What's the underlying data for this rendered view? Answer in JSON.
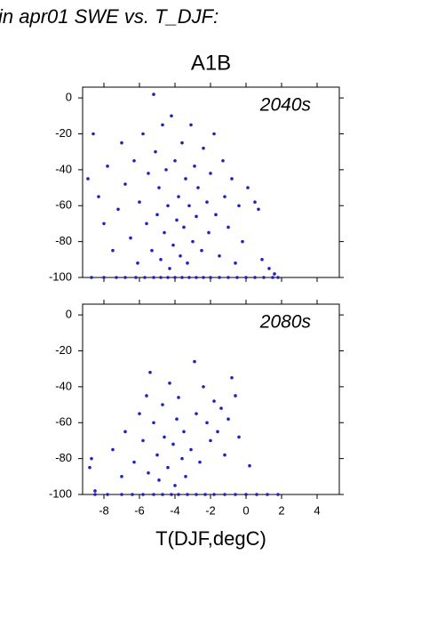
{
  "heading": "in apr01 SWE vs. T_DJF:",
  "chart_data": [
    {
      "type": "scatter",
      "title": "A1B",
      "annotation": "2040s",
      "color": "#2222bb",
      "xlim": [
        -9.2,
        5.25
      ],
      "ylim": [
        -100,
        6
      ],
      "xticks": [
        -8,
        -6,
        -4,
        -2,
        0,
        2,
        4
      ],
      "yticks": [
        0,
        -20,
        -40,
        -60,
        -80,
        -100
      ],
      "x": [
        -8.9,
        -8.6,
        -8.3,
        -8.0,
        -7.8,
        -7.5,
        -7.2,
        -7.0,
        -6.8,
        -6.5,
        -6.3,
        -6.1,
        -6.0,
        -5.8,
        -5.6,
        -5.5,
        -5.3,
        -5.2,
        -5.1,
        -5.0,
        -4.9,
        -4.8,
        -4.7,
        -4.6,
        -4.5,
        -4.4,
        -4.3,
        -4.2,
        -4.1,
        -4.0,
        -3.9,
        -3.8,
        -3.7,
        -3.6,
        -3.5,
        -3.4,
        -3.3,
        -3.2,
        -3.1,
        -3.0,
        -2.9,
        -2.8,
        -2.7,
        -2.5,
        -2.4,
        -2.2,
        -2.1,
        -2.0,
        -1.8,
        -1.7,
        -1.5,
        -1.3,
        -1.2,
        -1.0,
        -0.8,
        -0.6,
        -0.4,
        -0.2,
        0.1,
        0.5,
        0.7,
        0.9,
        1.3,
        1.6,
        -8.7,
        -8.0,
        -7.3,
        -6.8,
        -6.2,
        -5.7,
        -5.2,
        -4.8,
        -4.4,
        -4.0,
        -3.6,
        -3.2,
        -2.8,
        -2.4,
        -2.0,
        -1.5,
        -1.0,
        -0.5,
        0.0,
        0.5,
        1.0,
        1.5,
        1.8
      ],
      "values": [
        -45,
        -20,
        -55,
        -70,
        -38,
        -85,
        -62,
        -25,
        -48,
        -78,
        -35,
        -92,
        -58,
        -20,
        -70,
        -42,
        -85,
        2,
        -30,
        -65,
        -50,
        -90,
        -15,
        -75,
        -40,
        -60,
        -95,
        -10,
        -82,
        -35,
        -68,
        -55,
        -88,
        -25,
        -72,
        -45,
        -92,
        -60,
        -15,
        -80,
        -38,
        -66,
        -50,
        -85,
        -28,
        -58,
        -75,
        -42,
        -20,
        -65,
        -88,
        -35,
        -55,
        -72,
        -45,
        -92,
        -60,
        -80,
        -50,
        -58,
        -62,
        -90,
        -95,
        -98,
        -100,
        -100,
        -100,
        -100,
        -100,
        -100,
        -100,
        -100,
        -100,
        -100,
        -100,
        -100,
        -100,
        -100,
        -100,
        -100,
        -100,
        -100,
        -100,
        -100,
        -100,
        -100,
        -100
      ]
    },
    {
      "type": "scatter",
      "annotation": "2080s",
      "xlabel": "T(DJF,degC)",
      "color": "#2222bb",
      "xlim": [
        -9.2,
        5.25
      ],
      "ylim": [
        -100,
        6
      ],
      "xticks": [
        -8,
        -6,
        -4,
        -2,
        0,
        2,
        4
      ],
      "yticks": [
        0,
        -20,
        -40,
        -60,
        -80,
        -100
      ],
      "x": [
        -8.8,
        -8.7,
        -8.5,
        -7.5,
        -7.0,
        -6.8,
        -6.3,
        -6.0,
        -5.8,
        -5.6,
        -5.5,
        -5.4,
        -5.2,
        -5.0,
        -4.9,
        -4.7,
        -4.6,
        -4.4,
        -4.3,
        -4.1,
        -4.0,
        -3.9,
        -3.8,
        -3.6,
        -3.5,
        -3.4,
        -3.1,
        -2.9,
        -2.8,
        -2.6,
        -2.4,
        -2.2,
        -2.0,
        -1.8,
        -1.6,
        -1.4,
        -1.2,
        -1.0,
        -0.8,
        -0.6,
        -0.4,
        0.2,
        -8.5,
        -7.8,
        -7.0,
        -6.4,
        -5.8,
        -5.2,
        -4.7,
        -4.2,
        -3.8,
        -3.3,
        -2.8,
        -2.3,
        -1.8,
        -1.2,
        -0.6,
        0.0,
        0.6,
        1.2,
        1.8
      ],
      "values": [
        -85,
        -80,
        -98,
        -75,
        -90,
        -65,
        -82,
        -55,
        -70,
        -45,
        -88,
        -32,
        -60,
        -78,
        -92,
        -50,
        -68,
        -85,
        -38,
        -72,
        -95,
        -58,
        -46,
        -80,
        -65,
        -90,
        -75,
        -26,
        -55,
        -82,
        -40,
        -60,
        -70,
        -48,
        -65,
        -52,
        -78,
        -58,
        -35,
        -45,
        -68,
        -84,
        -100,
        -100,
        -100,
        -100,
        -100,
        -100,
        -100,
        -100,
        -100,
        -100,
        -100,
        -100,
        -100,
        -100,
        -100,
        -100,
        -100,
        -100,
        -100
      ]
    }
  ]
}
